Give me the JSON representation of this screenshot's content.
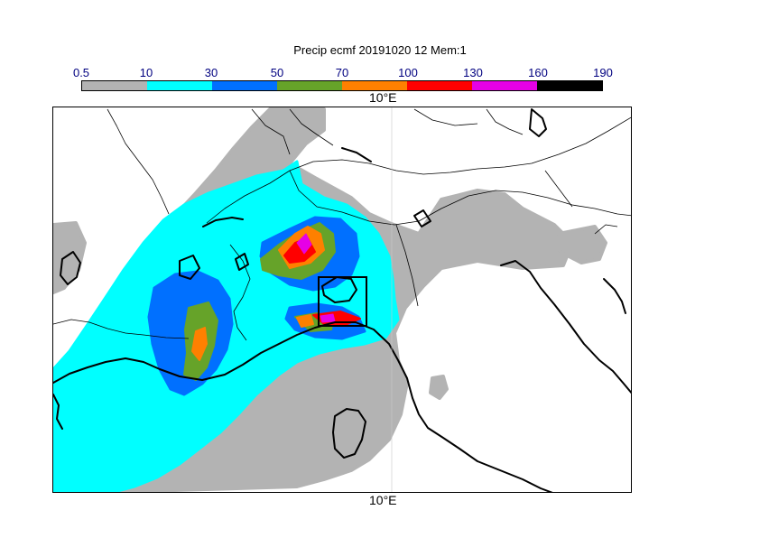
{
  "title": "Precip ecmf 20191020 12 Mem:1",
  "colorbar": {
    "labels": [
      "0.5",
      "10",
      "30",
      "50",
      "70",
      "100",
      "130",
      "160",
      "190"
    ],
    "colors": [
      "#b3b3b3",
      "#00ffff",
      "#0070ff",
      "#66a329",
      "#ff8000",
      "#ff0000",
      "#e600e6",
      "#000000"
    ]
  },
  "axis": {
    "top_label": "10°E",
    "bottom_label": "10°E"
  },
  "map": {
    "region": "Northern Italy / Alps / Ligurian Sea",
    "variable": "precipitation",
    "highlight_box": "rectangle near Genoa"
  }
}
